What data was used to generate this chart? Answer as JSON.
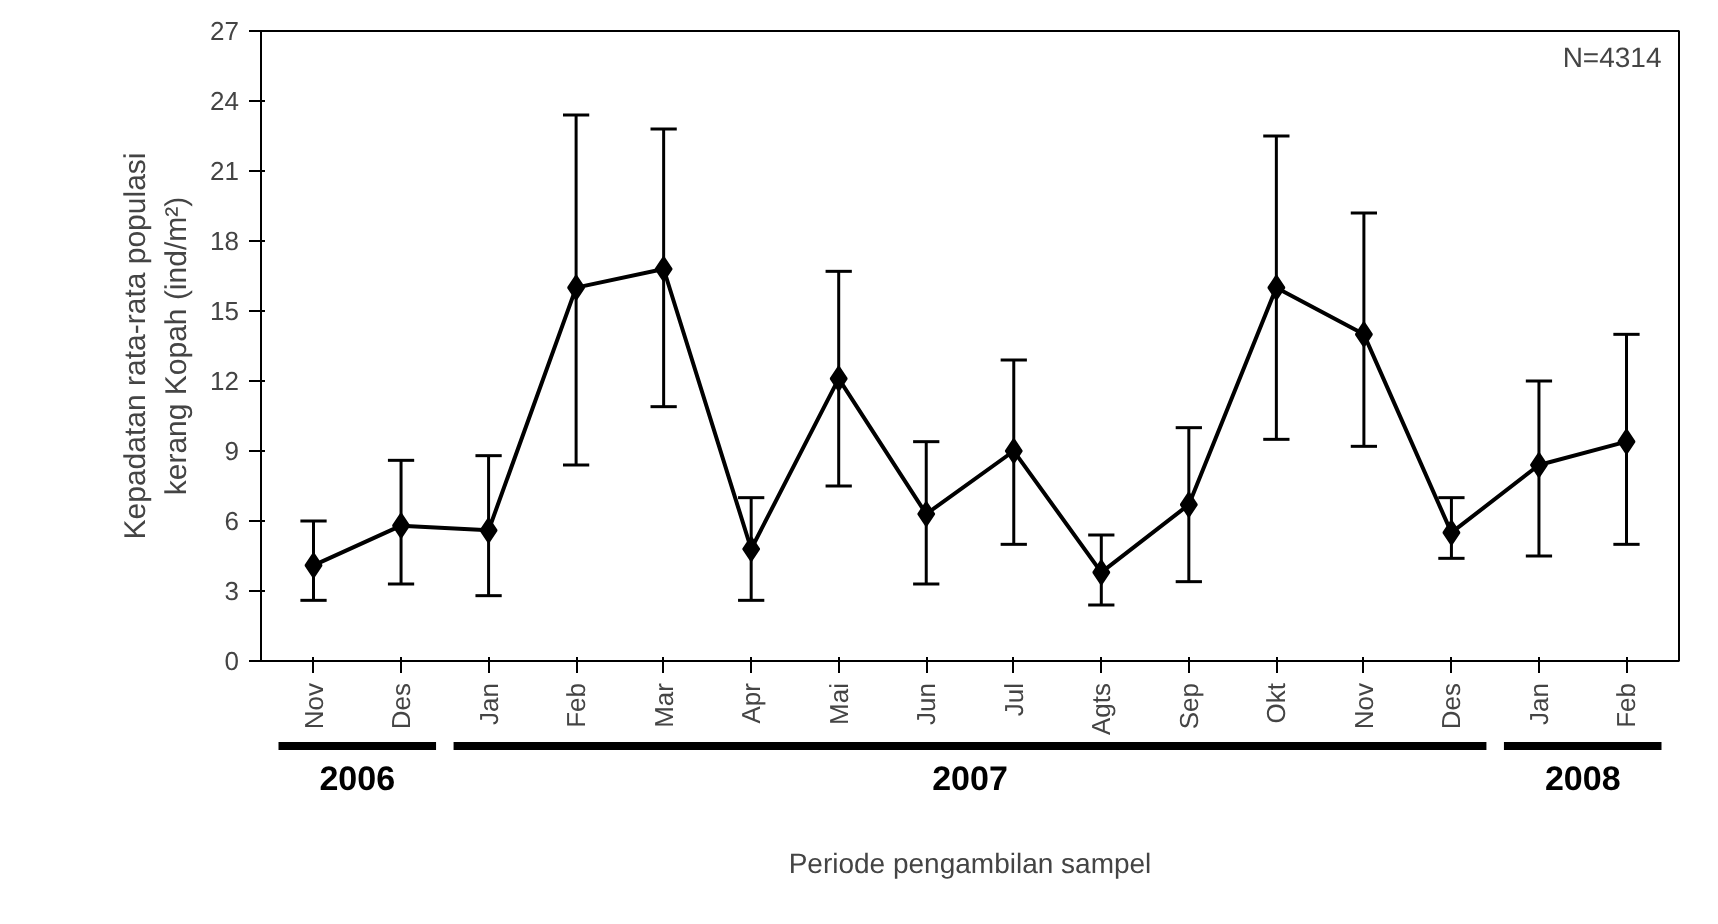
{
  "chart_data": {
    "type": "line",
    "xlabel": "Periode pengambilan sampel",
    "ylabel": "Kepadatan rata-rata populasi kerang Kopah (ind/m²)",
    "categories": [
      "Nov",
      "Des",
      "Jan",
      "Feb",
      "Mar",
      "Apr",
      "Mai",
      "Jun",
      "Jul",
      "Agts",
      "Sep",
      "Okt",
      "Nov",
      "Des",
      "Jan",
      "Feb"
    ],
    "series": [
      {
        "color": "#000000",
        "values": [
          4.1,
          5.8,
          5.6,
          16.0,
          16.8,
          4.8,
          12.1,
          6.3,
          9.0,
          3.8,
          6.7,
          16.0,
          14.0,
          5.5,
          8.4,
          9.4
        ],
        "errors": [
          [
            2.6,
            6.0
          ],
          [
            3.3,
            8.6
          ],
          [
            2.8,
            8.8
          ],
          [
            8.4,
            23.4
          ],
          [
            10.9,
            22.8
          ],
          [
            2.6,
            7.0
          ],
          [
            7.5,
            16.7
          ],
          [
            3.3,
            9.4
          ],
          [
            5.0,
            12.9
          ],
          [
            2.4,
            5.4
          ],
          [
            3.4,
            10.0
          ],
          [
            9.5,
            22.5
          ],
          [
            9.2,
            19.2
          ],
          [
            4.4,
            7.0
          ],
          [
            4.5,
            12.0
          ],
          [
            5.0,
            14.0
          ]
        ]
      }
    ],
    "ylim": [
      0,
      27
    ],
    "yticks": [
      0,
      3,
      6,
      9,
      12,
      15,
      18,
      21,
      24,
      27
    ],
    "grid": false,
    "marker": "diamond",
    "line_style": "solid",
    "annotations": [
      "2006",
      "2007",
      "2008",
      "N=4314"
    ]
  }
}
